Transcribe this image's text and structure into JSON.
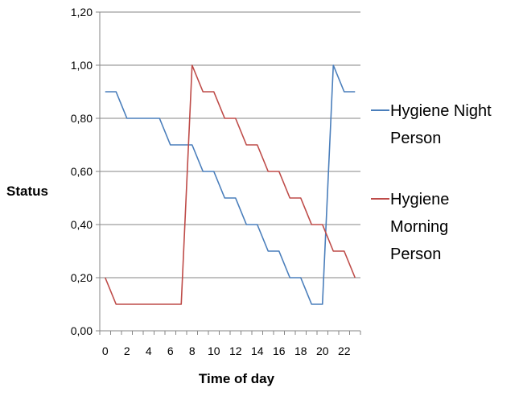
{
  "chart_data": {
    "type": "line",
    "xlabel": "Time of day",
    "ylabel": "Status",
    "x": [
      0,
      1,
      2,
      3,
      4,
      5,
      6,
      7,
      8,
      9,
      10,
      11,
      12,
      13,
      14,
      15,
      16,
      17,
      18,
      19,
      20,
      21,
      22,
      23
    ],
    "x_tick_labels": [
      "0",
      "2",
      "4",
      "6",
      "8",
      "10",
      "12",
      "14",
      "16",
      "18",
      "20",
      "22"
    ],
    "y_tick_labels": [
      "0,00",
      "0,20",
      "0,40",
      "0,60",
      "0,80",
      "1,00",
      "1,20"
    ],
    "ylim": [
      0,
      1.2
    ],
    "grid": "horizontal",
    "legend_position": "right",
    "series": [
      {
        "name": "Hygiene Night Person",
        "name_lines": [
          "Hygiene Night",
          "Person"
        ],
        "color": "#4a7ebb",
        "values": [
          0.9,
          0.9,
          0.8,
          0.8,
          0.8,
          0.8,
          0.7,
          0.7,
          0.7,
          0.6,
          0.6,
          0.5,
          0.5,
          0.4,
          0.4,
          0.3,
          0.3,
          0.2,
          0.2,
          0.1,
          0.1,
          1.0,
          0.9,
          0.9
        ]
      },
      {
        "name": "Hygiene Morning Person",
        "name_lines": [
          "Hygiene",
          "Morning",
          "Person"
        ],
        "color": "#be4b48",
        "values": [
          0.2,
          0.1,
          0.1,
          0.1,
          0.1,
          0.1,
          0.1,
          0.1,
          1.0,
          0.9,
          0.9,
          0.8,
          0.8,
          0.7,
          0.7,
          0.6,
          0.6,
          0.5,
          0.5,
          0.4,
          0.4,
          0.3,
          0.3,
          0.2
        ]
      }
    ]
  }
}
